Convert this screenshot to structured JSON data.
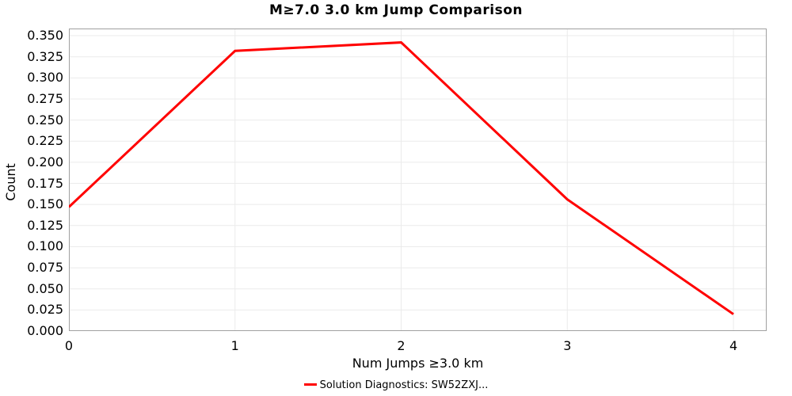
{
  "chart_data": {
    "type": "line",
    "title": "M≥7.0 3.0 km Jump Comparison",
    "xlabel": "Num Jumps ≥3.0 km",
    "ylabel": "Count",
    "x": [
      0,
      1,
      2,
      3,
      4
    ],
    "series": [
      {
        "name": "Solution Diagnostics: SW52ZXJ...",
        "values": [
          0.147,
          0.332,
          0.342,
          0.156,
          0.02
        ],
        "color": "#ff0000"
      }
    ],
    "xlim": [
      0,
      4.2
    ],
    "ylim": [
      0,
      0.3585
    ],
    "xticks": [
      0,
      1,
      2,
      3,
      4
    ],
    "yticks": [
      0.0,
      0.025,
      0.05,
      0.075,
      0.1,
      0.125,
      0.15,
      0.175,
      0.2,
      0.225,
      0.25,
      0.275,
      0.3,
      0.325,
      0.35
    ],
    "ytick_decimals": 3,
    "grid": true,
    "legend_position": "bottom-center",
    "colors": {
      "line": "#ff0000",
      "grid": "#ebebeb",
      "border": "#a0a0a0",
      "text": "#000000",
      "background": "#ffffff"
    }
  }
}
